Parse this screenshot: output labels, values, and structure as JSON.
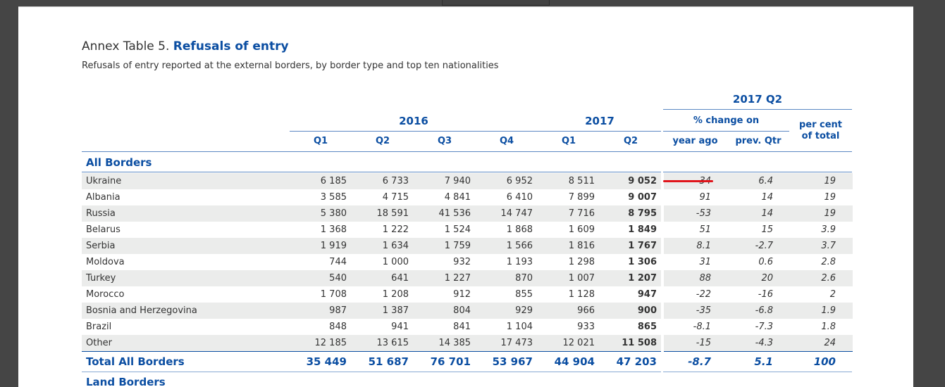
{
  "document": {
    "table_label": "Annex Table 5.",
    "table_title": "Refusals of entry",
    "subtitle": "Refusals of entry reported at the external borders, by border type and top ten nationalities",
    "header": {
      "period_group": "2017 Q2",
      "year_2016": "2016",
      "year_2017": "2017",
      "change_on": "% change on",
      "per_cent": "per cent",
      "of_total": "of total",
      "columns": [
        "Q1",
        "Q2",
        "Q3",
        "Q4",
        "Q1",
        "Q2",
        "year ago",
        "prev. Qtr"
      ]
    },
    "section": "All Borders",
    "next_section": "Land Borders",
    "rows": [
      {
        "name": "Ukraine",
        "values": [
          "6 185",
          "6 733",
          "7 940",
          "6 952",
          "8 511",
          "9 052"
        ],
        "year_ago": "34",
        "prev_qtr": "6.4",
        "pct": "19"
      },
      {
        "name": "Albania",
        "values": [
          "3 585",
          "4 715",
          "4 841",
          "6 410",
          "7 899",
          "9 007"
        ],
        "year_ago": "91",
        "prev_qtr": "14",
        "pct": "19"
      },
      {
        "name": "Russia",
        "values": [
          "5 380",
          "18 591",
          "41 536",
          "14 747",
          "7 716",
          "8 795"
        ],
        "year_ago": "-53",
        "prev_qtr": "14",
        "pct": "19"
      },
      {
        "name": "Belarus",
        "values": [
          "1 368",
          "1 222",
          "1 524",
          "1 868",
          "1 609",
          "1 849"
        ],
        "year_ago": "51",
        "prev_qtr": "15",
        "pct": "3.9"
      },
      {
        "name": "Serbia",
        "values": [
          "1 919",
          "1 634",
          "1 759",
          "1 566",
          "1 816",
          "1 767"
        ],
        "year_ago": "8.1",
        "prev_qtr": "-2.7",
        "pct": "3.7"
      },
      {
        "name": "Moldova",
        "values": [
          "744",
          "1 000",
          "932",
          "1 193",
          "1 298",
          "1 306"
        ],
        "year_ago": "31",
        "prev_qtr": "0.6",
        "pct": "2.8"
      },
      {
        "name": "Turkey",
        "values": [
          "540",
          "641",
          "1 227",
          "870",
          "1 007",
          "1 207"
        ],
        "year_ago": "88",
        "prev_qtr": "20",
        "pct": "2.6"
      },
      {
        "name": "Morocco",
        "values": [
          "1 708",
          "1 208",
          "912",
          "855",
          "1 128",
          "947"
        ],
        "year_ago": "-22",
        "prev_qtr": "-16",
        "pct": "2"
      },
      {
        "name": "Bosnia and Herzegovina",
        "values": [
          "987",
          "1 387",
          "804",
          "929",
          "966",
          "900"
        ],
        "year_ago": "-35",
        "prev_qtr": "-6.8",
        "pct": "1.9"
      },
      {
        "name": "Brazil",
        "values": [
          "848",
          "941",
          "841",
          "1 104",
          "933",
          "865"
        ],
        "year_ago": "-8.1",
        "prev_qtr": "-7.3",
        "pct": "1.8"
      },
      {
        "name": "Other",
        "values": [
          "12 185",
          "13 615",
          "14 385",
          "17 473",
          "12 021",
          "11 508"
        ],
        "year_ago": "-15",
        "prev_qtr": "-4.3",
        "pct": "24"
      }
    ],
    "total": {
      "name": "Total All Borders",
      "values": [
        "35 449",
        "51 687",
        "76 701",
        "53 967",
        "44 904",
        "47 203"
      ],
      "year_ago": "-8.7",
      "prev_qtr": "5.1",
      "pct": "100"
    }
  },
  "colors": {
    "accent": "#0b4ea2",
    "stripe": "#ebeceb",
    "annotation": "#e0151b"
  }
}
